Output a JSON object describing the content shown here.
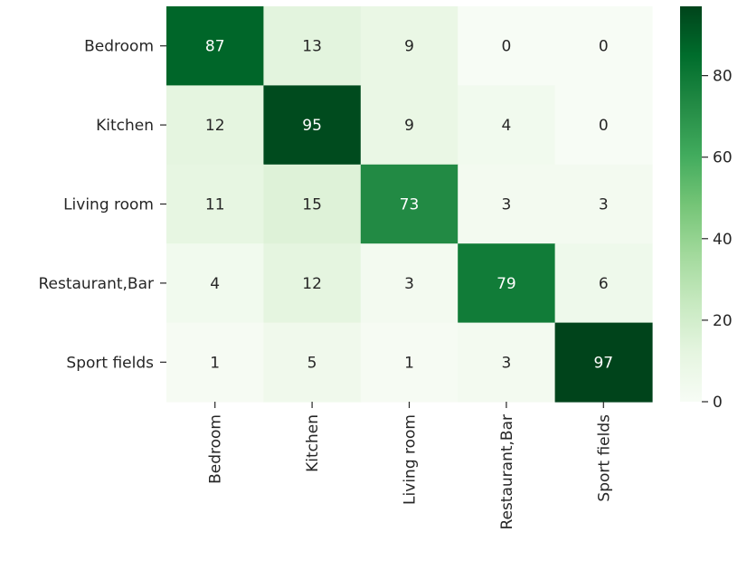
{
  "chart_data": {
    "type": "heatmap",
    "rows": [
      "Bedroom",
      "Kitchen",
      "Living room",
      "Restaurant,Bar",
      "Sport fields"
    ],
    "columns": [
      "Bedroom",
      "Kitchen",
      "Living room",
      "Restaurant,Bar",
      "Sport fields"
    ],
    "values": [
      [
        87,
        13,
        9,
        0,
        0
      ],
      [
        12,
        95,
        9,
        4,
        0
      ],
      [
        11,
        15,
        73,
        3,
        3
      ],
      [
        4,
        12,
        3,
        79,
        6
      ],
      [
        1,
        5,
        1,
        3,
        97
      ]
    ],
    "colorbar": {
      "min": 0,
      "max": 97,
      "ticks": [
        0,
        20,
        40,
        60,
        80
      ]
    },
    "colormap": "Greens",
    "colors": {
      "low": "#f7fcf5",
      "high": "#00441b"
    },
    "annotations": true,
    "grid": false,
    "legend": "colorbar-right",
    "title": "",
    "xlabel": "",
    "ylabel": ""
  }
}
